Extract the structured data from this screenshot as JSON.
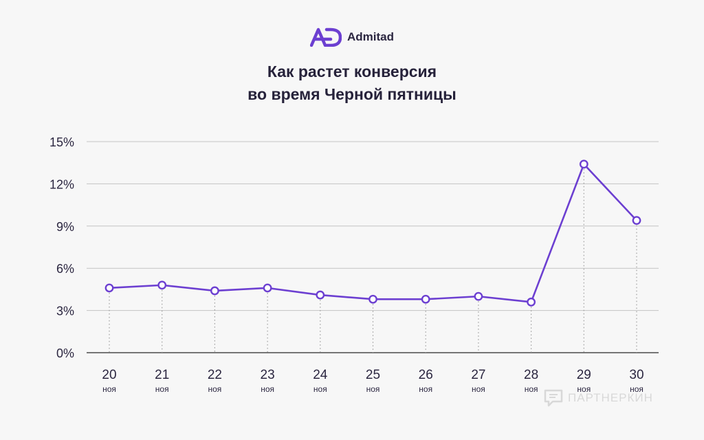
{
  "brand": {
    "name": "Admitad",
    "accent": "#6c3fd1"
  },
  "title": {
    "line1": "Как растет конверсия",
    "line2": "во время Черной пятницы"
  },
  "watermark": {
    "text": "ПАРТНЕРКИН"
  },
  "chart_data": {
    "type": "line",
    "categories": [
      "20",
      "21",
      "22",
      "23",
      "24",
      "25",
      "26",
      "27",
      "28",
      "29",
      "30"
    ],
    "category_sublabel": "ноя",
    "values": [
      4.6,
      4.8,
      4.4,
      4.6,
      4.1,
      3.8,
      3.8,
      4.0,
      3.6,
      13.4,
      9.4
    ],
    "yticks": [
      0,
      3,
      6,
      9,
      12,
      15
    ],
    "ytick_suffix": "%",
    "ylim": [
      0,
      15
    ],
    "grid": true,
    "line_color": "#6c3fd1",
    "xlabel": "",
    "ylabel": ""
  }
}
